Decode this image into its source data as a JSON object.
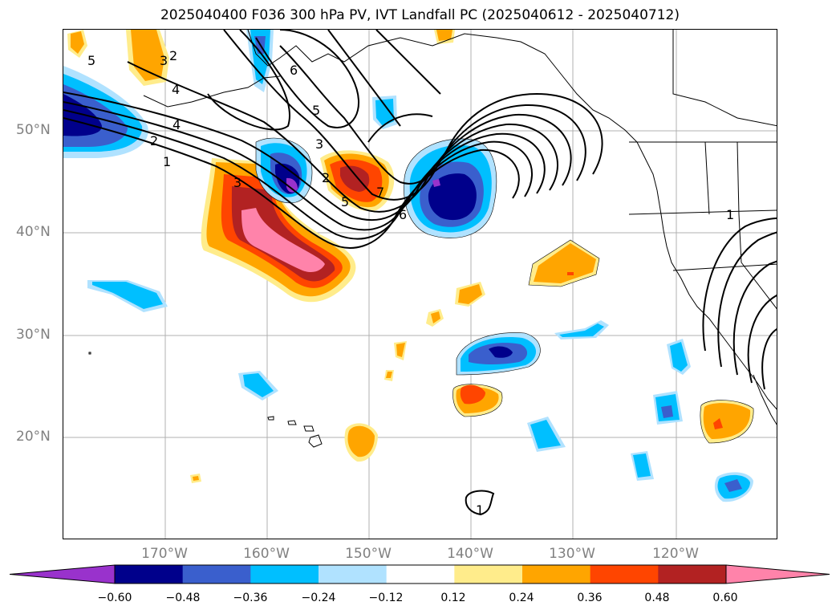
{
  "title": "2025040400 F036 300 hPa PV, IVT Landfall PC (2025040612 - 2025040712)",
  "latitude_labels": [
    "50°N",
    "40°N",
    "30°N",
    "20°N"
  ],
  "longitude_labels": [
    "170°W",
    "160°W",
    "150°W",
    "140°W",
    "130°W",
    "120°W"
  ],
  "contour_labels": [
    "5",
    "3",
    "2",
    "4",
    "4",
    "2",
    "1",
    "3",
    "6",
    "5",
    "3",
    "2",
    "5",
    "7",
    "6",
    "1",
    "1"
  ],
  "colorbar": {
    "ticks": [
      "−0.60",
      "−0.48",
      "−0.36",
      "−0.24",
      "−0.12",
      "0.12",
      "0.24",
      "0.36",
      "0.48",
      "0.60"
    ],
    "colors": [
      "#9932CC",
      "#00008B",
      "#3A5FCD",
      "#00BFFF",
      "#B0E2FF",
      "#FFFFFF",
      "#FFEC8B",
      "#FFA500",
      "#FF4500",
      "#B22222",
      "#FF83AA"
    ]
  },
  "colors": {
    "grid": "#b0b0b0",
    "coastline": "#000000",
    "contour": "#000000",
    "label": "#808080"
  }
}
